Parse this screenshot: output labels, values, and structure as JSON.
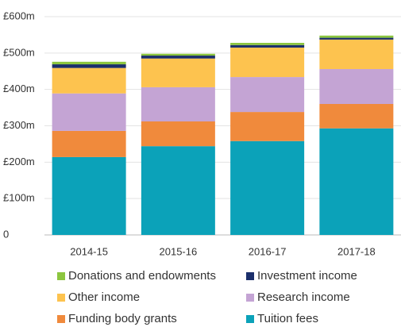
{
  "chart_data": {
    "type": "stacked_bar",
    "categories": [
      "2014-15",
      "2015-16",
      "2016-17",
      "2017-18"
    ],
    "series": [
      {
        "name": "Tuition fees",
        "color": "#0ba2b9",
        "values": [
          214,
          244,
          258,
          293
        ]
      },
      {
        "name": "Funding body grants",
        "color": "#f08a3c",
        "values": [
          72,
          68,
          80,
          67
        ]
      },
      {
        "name": "Research income",
        "color": "#c4a4d4",
        "values": [
          103,
          94,
          96,
          96
        ]
      },
      {
        "name": "Other income",
        "color": "#fdc34f",
        "values": [
          70,
          79,
          81,
          81
        ]
      },
      {
        "name": "Investment income",
        "color": "#1b2f6b",
        "values": [
          10,
          8,
          7,
          5
        ]
      },
      {
        "name": "Donations and endowments",
        "color": "#8cc63f",
        "values": [
          7,
          5,
          6,
          6
        ]
      }
    ],
    "ylim": [
      0,
      600
    ],
    "yticks": [
      0,
      {
        "value": 100,
        "label": "£100m"
      },
      {
        "value": 200,
        "label": "£200m"
      },
      {
        "value": 300,
        "label": "£300m"
      },
      {
        "value": 400,
        "label": "£400m"
      },
      {
        "value": 500,
        "label": "£500m"
      },
      {
        "value": 600,
        "label": "£600m"
      }
    ],
    "grid": true
  }
}
